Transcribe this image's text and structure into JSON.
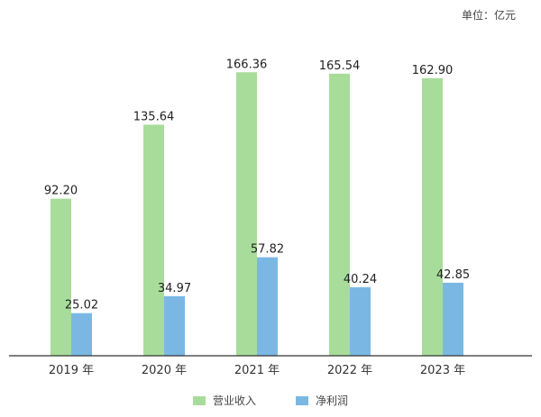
{
  "unit_label": "单位：亿元",
  "chart_data": {
    "type": "bar",
    "categories": [
      "2019 年",
      "2020 年",
      "2021 年",
      "2022 年",
      "2023 年"
    ],
    "series": [
      {
        "name": "营业收入",
        "values": [
          92.2,
          135.64,
          166.36,
          165.54,
          162.9
        ],
        "labels": [
          "92.20",
          "135.64",
          "166.36",
          "165.54",
          "162.90"
        ],
        "color": "#a8dc9a"
      },
      {
        "name": "净利润",
        "values": [
          25.02,
          34.97,
          57.82,
          40.24,
          42.85
        ],
        "labels": [
          "25.02",
          "34.97",
          "57.82",
          "40.24",
          "42.85"
        ],
        "color": "#7ab8e3"
      }
    ],
    "ylim": [
      0,
      185
    ],
    "grid": false,
    "legend_position": "bottom"
  }
}
